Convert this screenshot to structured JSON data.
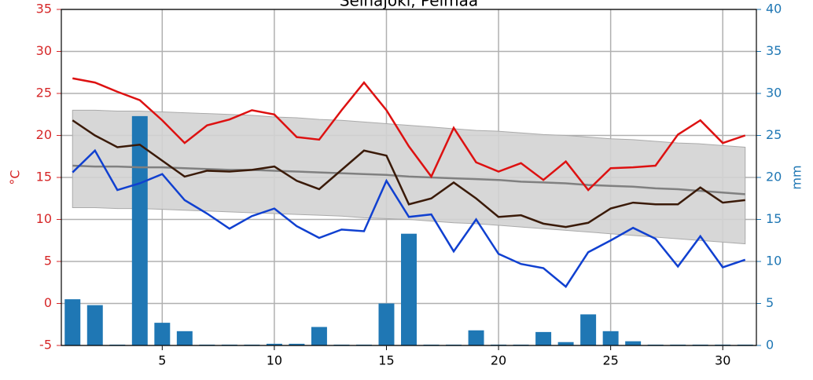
{
  "chart_data": {
    "type": "line",
    "title": "Seinäjoki, Pelmaa",
    "x": [
      1,
      2,
      3,
      4,
      5,
      6,
      7,
      8,
      9,
      10,
      11,
      12,
      13,
      14,
      15,
      16,
      17,
      18,
      19,
      20,
      21,
      22,
      23,
      24,
      25,
      26,
      27,
      28,
      29,
      30,
      31
    ],
    "xlim": [
      0.5,
      31.5
    ],
    "xticks": [
      5,
      10,
      15,
      20,
      25,
      30
    ],
    "ylim": [
      -5,
      35
    ],
    "yticks": [
      -5,
      0,
      5,
      10,
      15,
      20,
      25,
      30,
      35
    ],
    "ylabel": "°C",
    "ycolor": "#d62728",
    "y2lim": [
      0,
      40
    ],
    "y2ticks": [
      0,
      5,
      10,
      15,
      20,
      25,
      30,
      35,
      40
    ],
    "y2label": "mm",
    "y2color": "#1f77b4",
    "grid": true,
    "band": {
      "color": "#d3d3d3",
      "upper": [
        23.0,
        23.0,
        22.9,
        22.9,
        22.8,
        22.7,
        22.6,
        22.5,
        22.4,
        22.2,
        22.1,
        21.9,
        21.8,
        21.6,
        21.4,
        21.2,
        21.0,
        20.8,
        20.6,
        20.5,
        20.3,
        20.1,
        20.0,
        19.8,
        19.6,
        19.5,
        19.3,
        19.1,
        19.0,
        18.8,
        18.6
      ],
      "lower": [
        11.4,
        11.4,
        11.3,
        11.3,
        11.2,
        11.1,
        11.0,
        10.9,
        10.8,
        10.7,
        10.6,
        10.5,
        10.4,
        10.2,
        10.1,
        10.0,
        9.8,
        9.6,
        9.5,
        9.3,
        9.1,
        8.9,
        8.7,
        8.5,
        8.3,
        8.1,
        7.9,
        7.7,
        7.5,
        7.3,
        7.1
      ]
    },
    "series": [
      {
        "type": "bar",
        "axis": "y2",
        "color": "#1f77b4",
        "values": [
          5.5,
          4.8,
          0.1,
          27.3,
          2.7,
          1.7,
          0.1,
          0.1,
          0.1,
          0.2,
          0.2,
          2.2,
          0.1,
          0.1,
          5.0,
          13.3,
          0.1,
          0.1,
          1.8,
          0.1,
          0.1,
          1.6,
          0.4,
          3.7,
          1.7,
          0.5,
          0.1,
          0.1,
          0.1,
          0.1,
          0.1
        ]
      },
      {
        "type": "line",
        "color": "#808080",
        "values": [
          16.4,
          16.3,
          16.3,
          16.2,
          16.2,
          16.1,
          16.0,
          15.9,
          15.9,
          15.8,
          15.7,
          15.6,
          15.5,
          15.4,
          15.3,
          15.1,
          15.0,
          14.9,
          14.8,
          14.7,
          14.5,
          14.4,
          14.3,
          14.1,
          14.0,
          13.9,
          13.7,
          13.6,
          13.4,
          13.2,
          13.0
        ]
      },
      {
        "type": "line",
        "color": "#dd1111",
        "values": [
          26.8,
          26.3,
          25.2,
          24.2,
          21.8,
          19.1,
          21.2,
          21.9,
          23.0,
          22.5,
          19.8,
          19.5,
          23.0,
          26.3,
          23.0,
          18.7,
          15.1,
          20.9,
          16.8,
          15.7,
          16.7,
          14.7,
          16.9,
          13.5,
          16.1,
          16.2,
          16.4,
          20.1,
          21.8,
          19.1,
          20.0
        ]
      },
      {
        "type": "line",
        "color": "#3a1a08",
        "values": [
          21.8,
          20.0,
          18.6,
          18.9,
          17.0,
          15.1,
          15.8,
          15.7,
          15.9,
          16.3,
          14.6,
          13.6,
          15.9,
          18.2,
          17.6,
          11.8,
          12.5,
          14.4,
          12.5,
          10.3,
          10.5,
          9.5,
          9.1,
          9.6,
          11.3,
          12.0,
          11.8,
          11.8,
          13.8,
          12.0,
          12.3
        ]
      },
      {
        "type": "line",
        "color": "#1040d0",
        "values": [
          15.6,
          18.2,
          13.5,
          14.3,
          15.4,
          12.3,
          10.7,
          8.9,
          10.4,
          11.3,
          9.2,
          7.8,
          8.8,
          8.6,
          14.6,
          10.3,
          10.6,
          6.2,
          10.0,
          5.9,
          4.7,
          4.2,
          2.0,
          6.1,
          7.5,
          9.0,
          7.7,
          4.4,
          8.0,
          4.3,
          5.2
        ]
      }
    ]
  }
}
